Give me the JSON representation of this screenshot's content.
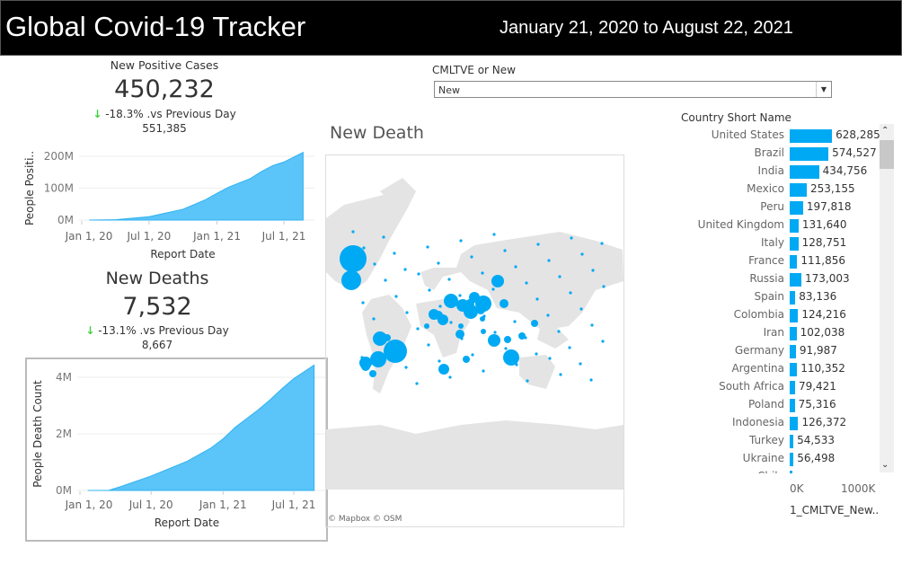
{
  "header": {
    "title": "Global Covid-19 Tracker",
    "date_range": "January 21, 2020 to August 22, 2021"
  },
  "cases": {
    "title": "New Positive Cases",
    "value": "450,232",
    "change": "-18.3% .vs Previous Day",
    "prev": "551,385",
    "arrow": "↓"
  },
  "deaths": {
    "title": "New Deaths",
    "value": "7,532",
    "change": "-13.1% .vs Previous Day",
    "prev": "8,667",
    "arrow": "↓"
  },
  "filter": {
    "label": "CMLTVE or New",
    "selected": "New"
  },
  "map": {
    "title": "New Death",
    "attribution": "© Mapbox © OSM"
  },
  "colors": {
    "accent": "#00a9f4",
    "down": "#3fd13f",
    "header_bg": "#000000"
  },
  "chart_data": [
    {
      "type": "area",
      "xlabel": "Report Date",
      "ylabel": "People Positi..",
      "yticks": [
        "0M",
        "100M",
        "200M"
      ],
      "xticks": [
        "Jan 1, 20",
        "Jul 1, 20",
        "Jan 1, 21",
        "Jul 1, 21"
      ],
      "ylim": [
        0,
        200000000
      ],
      "x": [
        "2020-01-21",
        "2020-04-01",
        "2020-07-01",
        "2020-10-01",
        "2020-12-01",
        "2021-01-01",
        "2021-02-01",
        "2021-04-01",
        "2021-05-01",
        "2021-06-01",
        "2021-07-01",
        "2021-08-22"
      ],
      "values": [
        0,
        900000,
        10500000,
        34000000,
        64000000,
        84000000,
        103000000,
        130000000,
        152000000,
        171000000,
        182000000,
        212000000
      ]
    },
    {
      "type": "area",
      "xlabel": "Report Date",
      "ylabel": "People Death Count",
      "yticks": [
        "0M",
        "2M",
        "4M"
      ],
      "xticks": [
        "Jan 1, 20",
        "Jul 1, 20",
        "Jan 1, 21",
        "Jul 1, 21"
      ],
      "ylim": [
        0,
        4000000
      ],
      "x": [
        "2020-01-21",
        "2020-03-15",
        "2020-04-15",
        "2020-07-01",
        "2020-10-01",
        "2020-12-01",
        "2021-01-01",
        "2021-02-01",
        "2021-04-01",
        "2021-05-01",
        "2021-06-01",
        "2021-07-01",
        "2021-08-22"
      ],
      "values": [
        0,
        5000,
        140000,
        510000,
        1030000,
        1500000,
        1820000,
        2230000,
        2850000,
        3200000,
        3600000,
        3950000,
        4430000
      ]
    },
    {
      "type": "bar",
      "title": "Country Short Name",
      "xlabel": "1_CMLTVE_New..",
      "xticks": [
        "0K",
        "1000K"
      ],
      "xlim": [
        0,
        1000000
      ],
      "categories": [
        "United States",
        "Brazil",
        "India",
        "Mexico",
        "Peru",
        "United Kingdom",
        "Italy",
        "France",
        "Russia",
        "Spain",
        "Colombia",
        "Iran",
        "Germany",
        "Argentina",
        "South Africa",
        "Poland",
        "Indonesia",
        "Turkey",
        "Ukraine",
        "Chile"
      ],
      "values": [
        628285,
        574527,
        434756,
        253155,
        197818,
        131640,
        128751,
        111856,
        173003,
        83136,
        124216,
        102038,
        91987,
        110352,
        79421,
        75316,
        126372,
        54533,
        56498,
        null
      ],
      "labels": [
        "628,285",
        "574,527",
        "434,756",
        "253,155",
        "197,818",
        "131,640",
        "128,751",
        "111,856",
        "173,003",
        "83,136",
        "124,216",
        "102,038",
        "91,987",
        "110,352",
        "79,421",
        "75,316",
        "126,372",
        "54,533",
        "56,498",
        ""
      ]
    }
  ]
}
